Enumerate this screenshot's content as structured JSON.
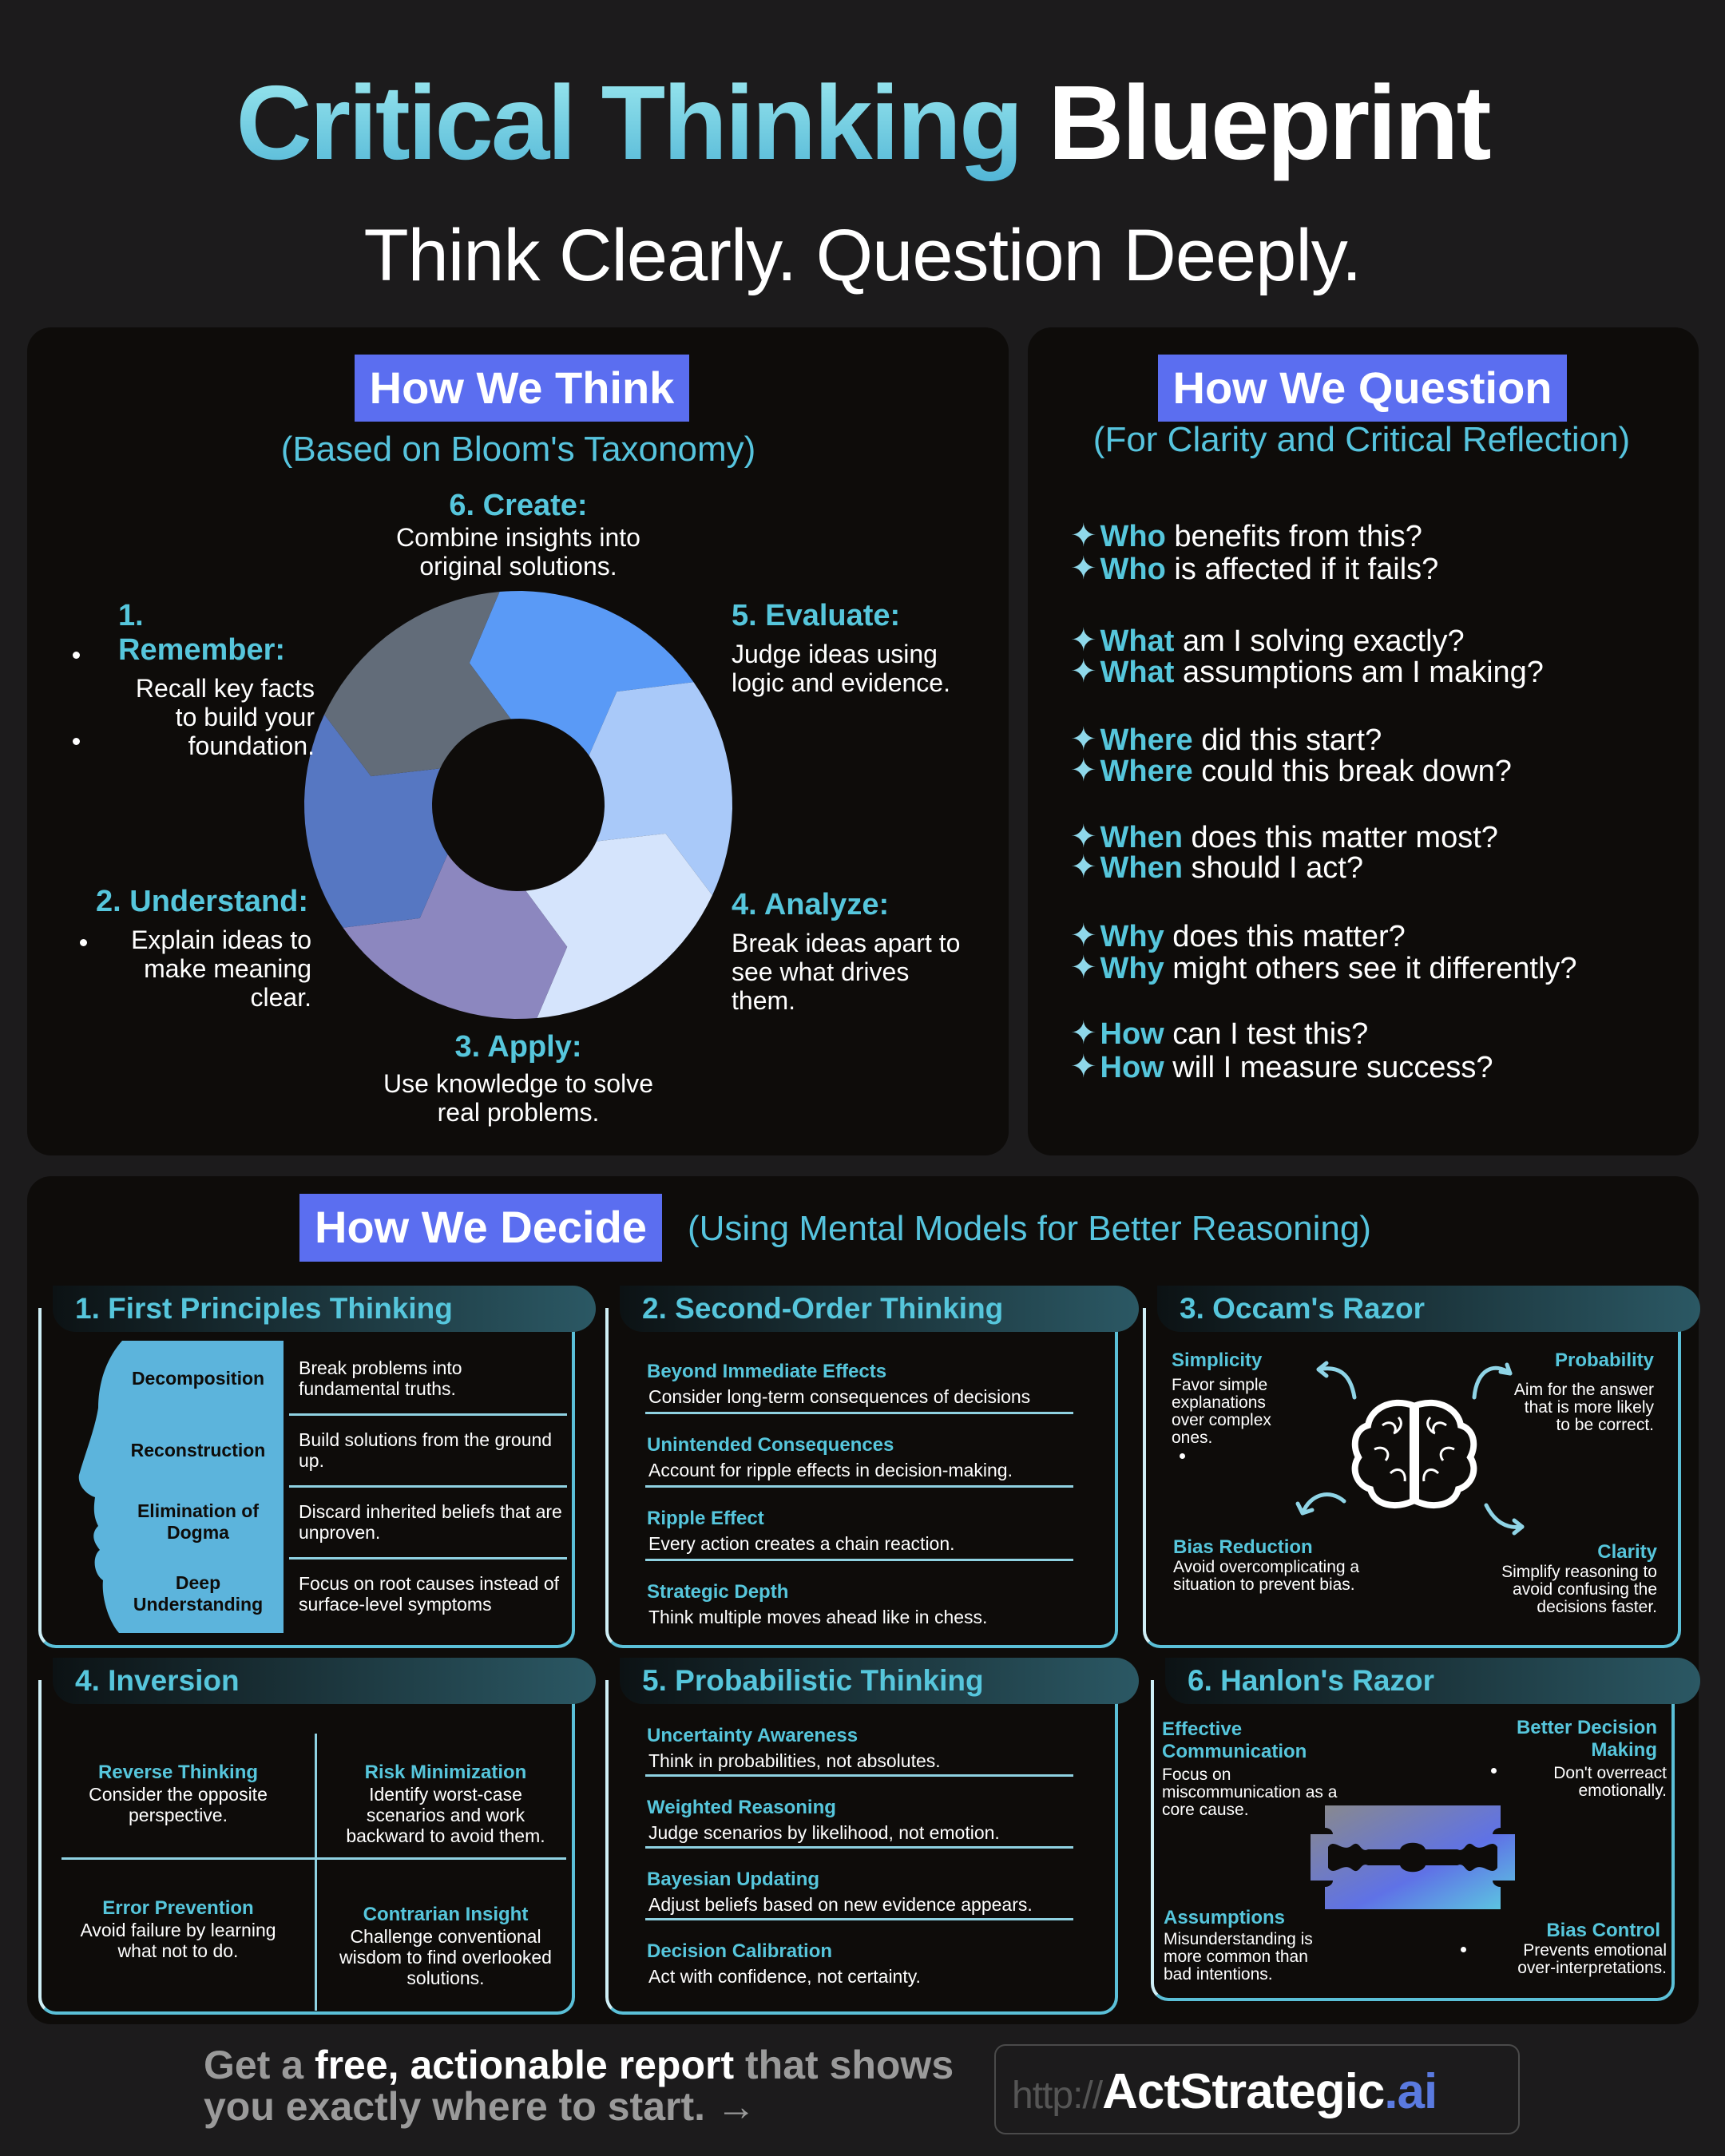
{
  "header": {
    "title_part1": "Critical Thinking",
    "title_part2": "Blueprint",
    "subtitle": "Think Clearly. Question Deeply."
  },
  "think": {
    "badge": "How We Think",
    "subtitle": "(Based on Bloom's Taxonomy)",
    "stages": [
      {
        "title": "6. Create:",
        "desc": [
          "Combine insights into",
          "original solutions."
        ]
      },
      {
        "title": "1.  Remember:",
        "desc": [
          "Recall key facts",
          "to build your",
          "foundation."
        ]
      },
      {
        "title": "5. Evaluate:",
        "desc": [
          "Judge ideas using",
          "logic and evidence."
        ]
      },
      {
        "title": "2. Understand:",
        "desc": [
          "Explain ideas to",
          "make meaning",
          "clear."
        ]
      },
      {
        "title": "4. Analyze:",
        "desc": [
          "Break ideas apart to",
          "see what drives",
          "them."
        ]
      },
      {
        "title": "3. Apply:",
        "desc": [
          "Use knowledge to solve",
          "real problems."
        ]
      }
    ],
    "cycle_colors": [
      "#5a9af6",
      "#a9c9f9",
      "#d5e4fc",
      "#8c87bf",
      "#5677c2",
      "#626c79"
    ]
  },
  "question": {
    "badge": "How We Question",
    "subtitle": "(For Clarity and Critical Reflection)",
    "icon": "sparkle-star-icon",
    "items": [
      {
        "key": "Who",
        "rest": " benefits from this?"
      },
      {
        "key": "Who",
        "rest": " is affected if it fails?"
      },
      {
        "key": "What",
        "rest": " am I solving exactly?"
      },
      {
        "key": "What",
        "rest": " assumptions am I making?"
      },
      {
        "key": "Where",
        "rest": " did this start?"
      },
      {
        "key": "Where",
        "rest": " could this break down?"
      },
      {
        "key": "When",
        "rest": " does this matter most?"
      },
      {
        "key": "When",
        "rest": " should I act?"
      },
      {
        "key": "Why",
        "rest": " does this matter?"
      },
      {
        "key": "Why",
        "rest": " might others see it differently?"
      },
      {
        "key": "How",
        "rest": " can I test this?"
      },
      {
        "key": "How",
        "rest": " will I measure success?"
      }
    ]
  },
  "decide": {
    "badge": "How We Decide",
    "subtitle": "(Using Mental Models for Better Reasoning)",
    "first_principles": {
      "title": "1. First Principles Thinking",
      "rows": [
        {
          "label": "Decomposition",
          "desc": "Break problems into fundamental truths."
        },
        {
          "label": "Reconstruction",
          "desc": "Build solutions from the ground up."
        },
        {
          "label": "Elimination of Dogma",
          "desc": "Discard inherited beliefs that are unproven."
        },
        {
          "label": "Deep Understanding",
          "desc": "Focus on root causes instead of surface-level symptoms"
        }
      ]
    },
    "second_order": {
      "title": "2. Second-Order Thinking",
      "items": [
        {
          "label": "Beyond Immediate Effects",
          "desc": "Consider long-term consequences of decisions"
        },
        {
          "label": "Unintended Consequences",
          "desc": "Account for ripple effects in decision-making."
        },
        {
          "label": "Ripple Effect",
          "desc": "Every action creates a chain reaction."
        },
        {
          "label": "Strategic Depth",
          "desc": "Think multiple moves ahead like in chess."
        }
      ]
    },
    "occam": {
      "title": "3. Occam's Razor",
      "simplicity": {
        "label": "Simplicity",
        "desc": "Favor simple explanations over complex ones."
      },
      "probability": {
        "label": "Probability",
        "desc": "Aim for the answer that is more likely to be correct."
      },
      "bias": {
        "label": "Bias Reduction",
        "desc": "Avoid overcomplicating a situation to prevent bias."
      },
      "clarity": {
        "label": "Clarity",
        "desc": "Simplify reasoning to avoid confusing the decisions faster."
      }
    },
    "inversion": {
      "title": "4. Inversion",
      "quadrants": [
        {
          "label": "Reverse Thinking",
          "desc": "Consider the opposite perspective."
        },
        {
          "label": "Risk Minimization",
          "desc": "Identify worst-case scenarios and work backward to avoid them."
        },
        {
          "label": "Error Prevention",
          "desc": "Avoid failure by learning what not to do."
        },
        {
          "label": "Contrarian Insight",
          "desc": "Challenge conventional wisdom to find overlooked solutions."
        }
      ]
    },
    "probabilistic": {
      "title": "5. Probabilistic Thinking",
      "items": [
        {
          "label": "Uncertainty Awareness",
          "desc": "Think in probabilities, not absolutes."
        },
        {
          "label": "Weighted Reasoning",
          "desc": "Judge scenarios by likelihood, not emotion."
        },
        {
          "label": "Bayesian Updating",
          "desc": "Adjust beliefs based on new evidence appears."
        },
        {
          "label": "Decision Calibration",
          "desc": "Act with confidence, not certainty."
        }
      ]
    },
    "hanlon": {
      "title": "6. Hanlon's Razor",
      "communication": {
        "label": "Effective Communication",
        "desc": "Focus on miscommunication as a core cause."
      },
      "decision": {
        "label": "Better Decision Making",
        "desc": "Don't overreact emotionally."
      },
      "assumptions": {
        "label": "Assumptions",
        "desc": "Misunderstanding is more common than bad intentions."
      },
      "bias": {
        "label": "Bias Control",
        "desc": "Prevents emotional over-interpretations."
      }
    }
  },
  "footer": {
    "cta_part1": "Get a ",
    "cta_part2": "free, actionable report",
    "cta_part3": " that shows",
    "cta_line2": "you exactly where to start. →",
    "url_prefix": "http://",
    "brand": "ActStrategic",
    "brand_suffix": ".ai"
  },
  "colors": {
    "background": "#1c1b1c",
    "panel": "#0e0c0a",
    "accent_teal": "#56c6dc",
    "badge_blue": "#5b6ef0"
  }
}
